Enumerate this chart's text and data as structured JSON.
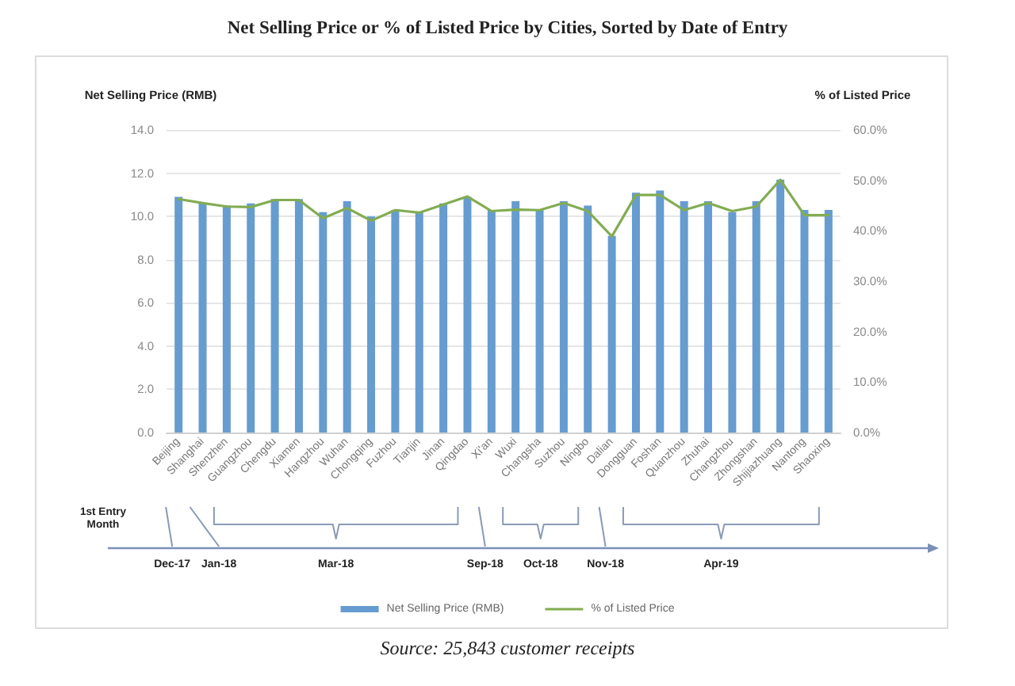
{
  "chart_data": {
    "type": "bar",
    "title": "Net Selling Price or % of Listed Price by Cities, Sorted by Date of Entry",
    "ylabel": "Net Selling Price (RMB)",
    "y2label": "% of Listed Price",
    "categories": [
      "Beijing",
      "Shanghai",
      "Shenzhen",
      "Guangzhou",
      "Chengdu",
      "Xiamen",
      "Hangzhou",
      "Wuhan",
      "Chongqing",
      "Fuzhou",
      "Tianjin",
      "Jinan",
      "Qingdao",
      "Xi'an",
      "Wuxi",
      "Changsha",
      "Suzhou",
      "Ningbo",
      "Dalian",
      "Dongguan",
      "Foshan",
      "Quanzhou",
      "Zhuhai",
      "Changzhou",
      "Zhongshan",
      "Shijiazhuang",
      "Nantong",
      "Shaoxing"
    ],
    "series": [
      {
        "name": "Net Selling Price (RMB)",
        "color": "#669ccf",
        "values": [
          10.9,
          10.6,
          10.5,
          10.6,
          10.8,
          10.8,
          10.2,
          10.7,
          10.0,
          10.3,
          10.2,
          10.6,
          10.9,
          10.3,
          10.7,
          10.3,
          10.7,
          10.5,
          9.1,
          11.1,
          11.2,
          10.7,
          10.7,
          10.2,
          10.7,
          11.7,
          10.3,
          10.3
        ]
      },
      {
        "name": "% of Listed Price",
        "type": "line",
        "axis": "y2",
        "color": "#82ac52",
        "values": [
          46.3,
          45.5,
          44.8,
          44.7,
          46.1,
          46.1,
          42.5,
          44.5,
          42.0,
          44.1,
          43.6,
          45.2,
          46.8,
          43.9,
          44.2,
          44.1,
          45.5,
          43.9,
          38.9,
          47.1,
          47.1,
          44.1,
          45.5,
          43.9,
          44.8,
          50.1,
          43.1,
          43.1
        ]
      }
    ],
    "ylim": [
      0,
      14
    ],
    "yticks": [
      {
        "value": 0,
        "label": "0.0"
      },
      {
        "value": 2,
        "label": "2.0"
      },
      {
        "value": 4,
        "label": "4.0"
      },
      {
        "value": 6,
        "label": "6.0"
      },
      {
        "value": 8,
        "label": "8.0"
      },
      {
        "value": 10,
        "label": "10.0"
      },
      {
        "value": 12,
        "label": "12.0"
      },
      {
        "value": 14,
        "label": "14.0"
      }
    ],
    "y2lim": [
      0,
      60
    ],
    "y2ticks": [
      {
        "value": 0,
        "label": "0.0%"
      },
      {
        "value": 10,
        "label": "10.0%"
      },
      {
        "value": 20,
        "label": "20.0%"
      },
      {
        "value": 30,
        "label": "30.0%"
      },
      {
        "value": 40,
        "label": "40.0%"
      },
      {
        "value": 50,
        "label": "50.0%"
      },
      {
        "value": 60,
        "label": "60.0%"
      }
    ],
    "grid": "y",
    "legend": "bottom",
    "marker": "none",
    "line_style": "solid",
    "annotations": [
      "1st Entry Month",
      "Dec-17",
      "Jan-18",
      "Mar-18",
      "Sep-18",
      "Oct-18",
      "Nov-18",
      "Apr-19",
      "Source: 25,843 customer receipts"
    ]
  }
}
